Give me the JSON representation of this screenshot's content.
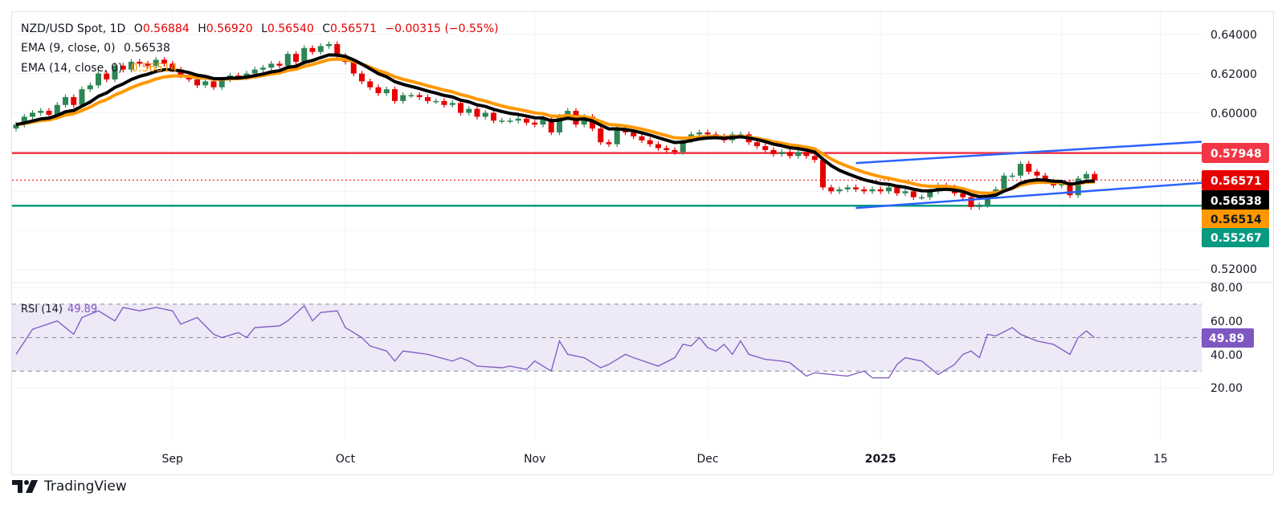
{
  "header": {
    "symbol": "NZD/USD Spot, 1D",
    "open_label": "O",
    "open": "0.56884",
    "high_label": "H",
    "high": "0.56920",
    "low_label": "L",
    "low": "0.56540",
    "close_label": "C",
    "close": "0.56571",
    "change": "−0.00315 (−0.55%)"
  },
  "indicators": {
    "ema9_label": "EMA (9, close, 0)",
    "ema9_value": "0.56538",
    "ema14_label": "EMA (14, close, 0)",
    "ema14_value": "0.56514",
    "rsi_label": "RSI (14)",
    "rsi_value": "49.89"
  },
  "price_labels": {
    "resistance": "0.57948",
    "last": "0.56571",
    "ema9": "0.56538",
    "ema14": "0.56514",
    "support": "0.55267",
    "rsi": "49.89"
  },
  "branding": {
    "name": "TradingView"
  },
  "colors": {
    "up": "#2e8555",
    "down": "#e60000",
    "ema9": "#000000",
    "ema14": "#ff9800",
    "resistance": "#f23645",
    "support": "#089981",
    "channel": "#2962ff",
    "rsi": "#7e57c2",
    "rsi_band": "#ede9f7"
  },
  "chart_data": {
    "type": "candlestick",
    "title": "NZD/USD Spot, 1D",
    "ylim": [
      0.51,
      0.645
    ],
    "y_ticks": [
      "0.64000",
      "0.62000",
      "0.60000",
      "0.52000"
    ],
    "x_ticks": [
      {
        "label": "Sep",
        "bar": 19
      },
      {
        "label": "Oct",
        "bar": 40
      },
      {
        "label": "Nov",
        "bar": 63
      },
      {
        "label": "Dec",
        "bar": 84
      },
      {
        "label": "2025",
        "bar": 105,
        "bold": true
      },
      {
        "label": "Feb",
        "bar": 127
      },
      {
        "label": "15",
        "bar": 139
      }
    ],
    "first_open": 0.592,
    "close": [
      0.594,
      0.598,
      0.6,
      0.601,
      0.599,
      0.604,
      0.608,
      0.604,
      0.612,
      0.614,
      0.62,
      0.617,
      0.624,
      0.622,
      0.626,
      0.625,
      0.624,
      0.627,
      0.625,
      0.622,
      0.619,
      0.617,
      0.614,
      0.616,
      0.613,
      0.617,
      0.619,
      0.618,
      0.62,
      0.622,
      0.623,
      0.625,
      0.624,
      0.63,
      0.626,
      0.633,
      0.631,
      0.634,
      0.635,
      0.629,
      0.626,
      0.62,
      0.616,
      0.613,
      0.61,
      0.612,
      0.606,
      0.609,
      0.609,
      0.608,
      0.606,
      0.606,
      0.604,
      0.605,
      0.6,
      0.602,
      0.598,
      0.6,
      0.596,
      0.596,
      0.596,
      0.597,
      0.595,
      0.594,
      0.597,
      0.59,
      0.598,
      0.601,
      0.594,
      0.598,
      0.592,
      0.585,
      0.584,
      0.592,
      0.59,
      0.588,
      0.586,
      0.584,
      0.582,
      0.581,
      0.58,
      0.586,
      0.589,
      0.59,
      0.589,
      0.588,
      0.586,
      0.589,
      0.589,
      0.585,
      0.583,
      0.581,
      0.579,
      0.58,
      0.578,
      0.58,
      0.578,
      0.576,
      0.562,
      0.56,
      0.561,
      0.562,
      0.561,
      0.56,
      0.561,
      0.56,
      0.562,
      0.559,
      0.56,
      0.557,
      0.557,
      0.56,
      0.563,
      0.562,
      0.559,
      0.557,
      0.552,
      0.553,
      0.558,
      0.561,
      0.568,
      0.568,
      0.574,
      0.57,
      0.568,
      0.565,
      0.563,
      0.5645,
      0.558,
      0.5665,
      0.5688,
      0.56571
    ],
    "horizontal_lines": [
      {
        "name": "resistance",
        "value": 0.57948
      },
      {
        "name": "support",
        "value": 0.55267
      }
    ],
    "last_price": 0.56571,
    "channel": {
      "upper": [
        [
          102,
          0.5744
        ],
        [
          144,
          0.5853
        ]
      ],
      "lower": [
        [
          102,
          0.5515
        ],
        [
          144,
          0.5643
        ]
      ]
    },
    "ema_periods": [
      9,
      14
    ],
    "rsi": {
      "ylim": [
        10,
        85
      ],
      "y_ticks": [
        "80.00",
        "60.00",
        "40.00",
        "20.00"
      ],
      "levels": [
        70,
        50,
        30
      ],
      "points": [
        [
          0,
          40
        ],
        [
          2,
          55
        ],
        [
          5,
          60
        ],
        [
          7,
          52
        ],
        [
          8,
          62
        ],
        [
          10,
          66
        ],
        [
          12,
          60
        ],
        [
          13,
          68
        ],
        [
          15,
          66
        ],
        [
          17,
          68
        ],
        [
          19,
          66
        ],
        [
          20,
          58
        ],
        [
          22,
          62
        ],
        [
          24,
          52
        ],
        [
          25,
          50
        ],
        [
          27,
          53
        ],
        [
          28,
          50
        ],
        [
          29,
          56
        ],
        [
          32,
          57
        ],
        [
          33,
          60
        ],
        [
          35,
          69
        ],
        [
          36,
          60
        ],
        [
          37,
          65
        ],
        [
          39,
          66
        ],
        [
          40,
          56
        ],
        [
          42,
          50
        ],
        [
          43,
          45
        ],
        [
          45,
          42
        ],
        [
          46,
          36
        ],
        [
          47,
          42
        ],
        [
          50,
          40
        ],
        [
          53,
          36
        ],
        [
          54,
          38
        ],
        [
          55,
          36
        ],
        [
          56,
          33
        ],
        [
          59,
          32
        ],
        [
          60,
          33
        ],
        [
          62,
          31
        ],
        [
          63,
          36
        ],
        [
          65,
          30
        ],
        [
          66,
          48
        ],
        [
          67,
          40
        ],
        [
          69,
          38
        ],
        [
          71,
          32
        ],
        [
          72,
          34
        ],
        [
          74,
          40
        ],
        [
          75,
          38
        ],
        [
          78,
          33
        ],
        [
          80,
          38
        ],
        [
          81,
          46
        ],
        [
          82,
          45
        ],
        [
          83,
          50
        ],
        [
          84,
          44
        ],
        [
          85,
          42
        ],
        [
          86,
          46
        ],
        [
          87,
          40
        ],
        [
          88,
          48
        ],
        [
          89,
          40
        ],
        [
          91,
          37
        ],
        [
          93,
          36
        ],
        [
          94,
          35
        ],
        [
          96,
          27
        ],
        [
          97,
          29
        ],
        [
          99,
          28
        ],
        [
          101,
          27
        ],
        [
          103,
          30
        ],
        [
          104,
          26
        ],
        [
          106,
          26
        ],
        [
          107,
          34
        ],
        [
          108,
          38
        ],
        [
          110,
          36
        ],
        [
          111,
          32
        ],
        [
          112,
          28
        ],
        [
          114,
          34
        ],
        [
          115,
          40
        ],
        [
          116,
          42
        ],
        [
          117,
          38
        ],
        [
          118,
          52
        ],
        [
          119,
          51
        ],
        [
          121,
          56
        ],
        [
          122,
          52
        ],
        [
          124,
          48
        ],
        [
          126,
          46
        ],
        [
          128,
          40
        ],
        [
          129,
          50
        ],
        [
          130,
          54
        ],
        [
          131,
          49.89
        ]
      ]
    }
  }
}
